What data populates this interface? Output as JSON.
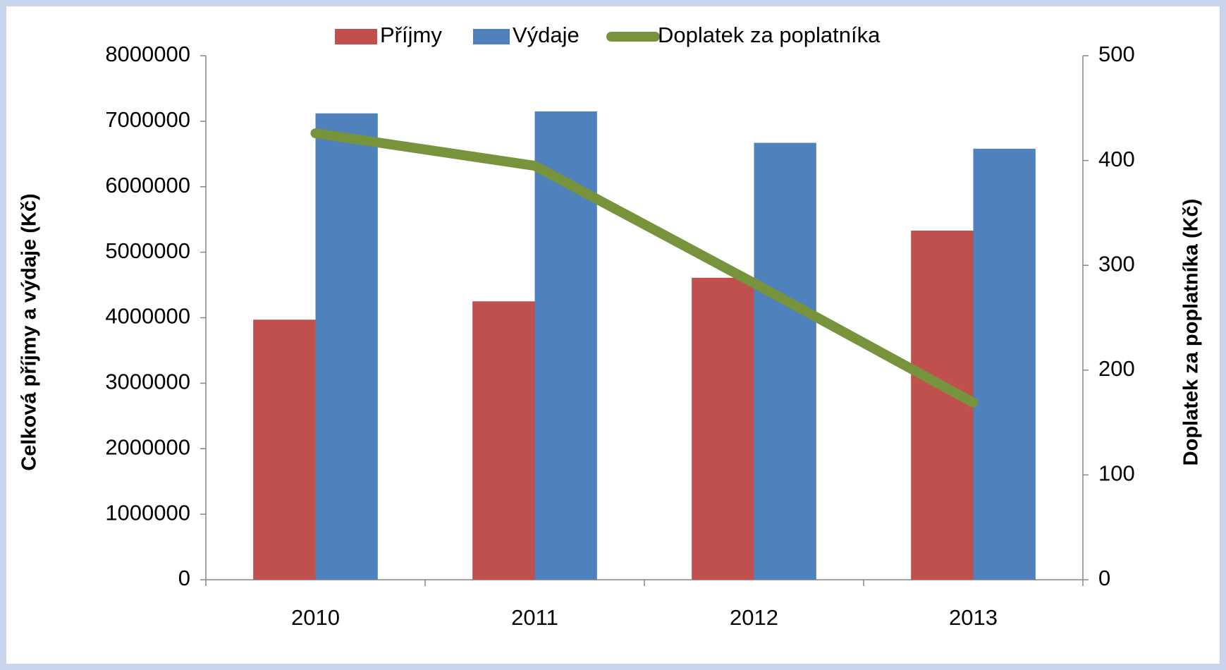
{
  "chart_data": {
    "type": "bar",
    "categories": [
      "2010",
      "2011",
      "2012",
      "2013"
    ],
    "series": [
      {
        "name": "Příjmy",
        "color": "#c0504d",
        "values": [
          3970000,
          4250000,
          4610000,
          5330000
        ]
      },
      {
        "name": "Výdaje",
        "color": "#4f81bd",
        "values": [
          7120000,
          7150000,
          6670000,
          6580000
        ]
      },
      {
        "name": "Doplatek za poplatníka",
        "color": "#77933c",
        "type": "line",
        "axis": "y2",
        "values": [
          426,
          395,
          283,
          169
        ]
      }
    ],
    "ylabel": "Celková příjmy a výdaje (Kč)",
    "y2label": "Doplatek za poplatníka (Kč)",
    "ylim": [
      0,
      8000000
    ],
    "yticks": [
      0,
      1000000,
      2000000,
      3000000,
      4000000,
      5000000,
      6000000,
      7000000,
      8000000
    ],
    "y2lim": [
      0,
      500
    ],
    "y2ticks": [
      0,
      100,
      200,
      300,
      400,
      500
    ],
    "legend": "top",
    "grid": false
  }
}
